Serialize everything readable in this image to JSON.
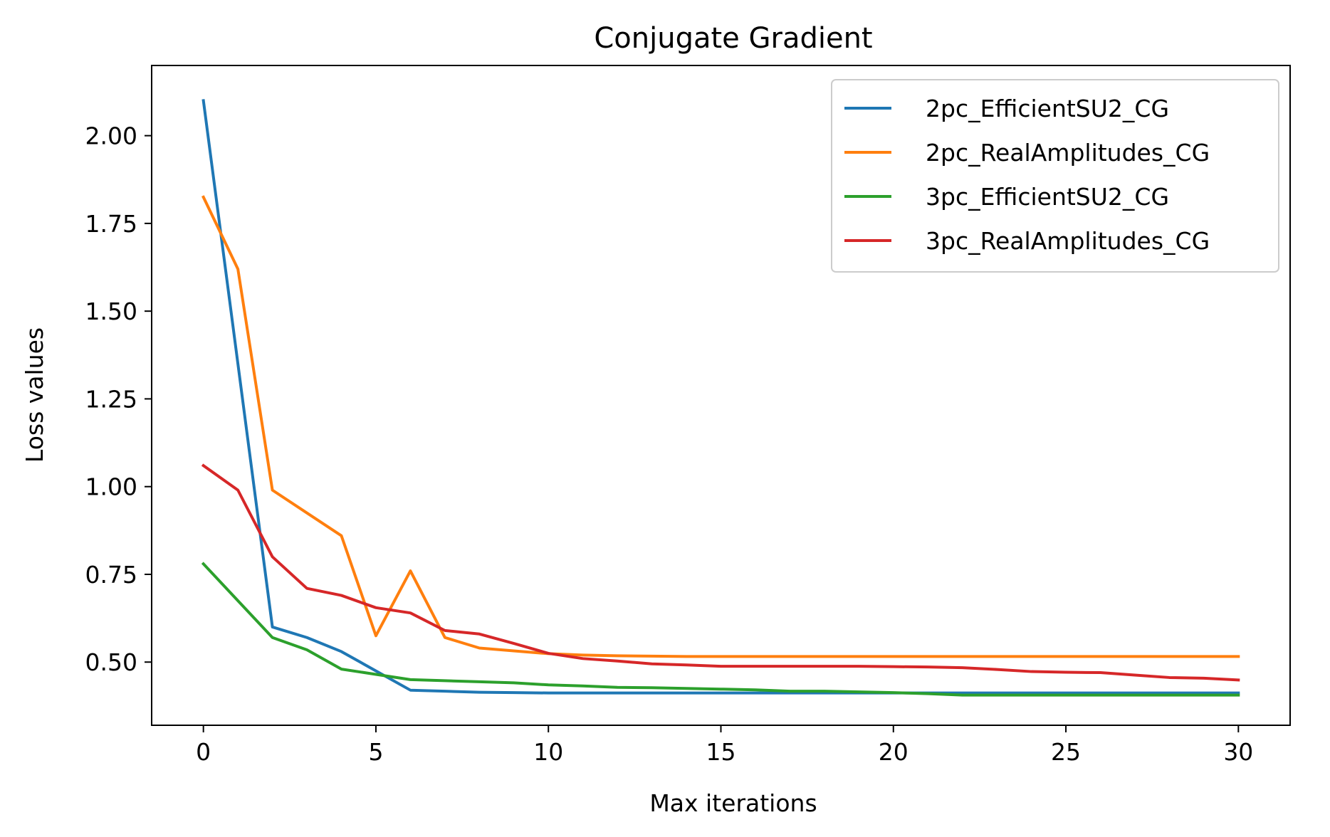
{
  "chart_data": {
    "type": "line",
    "title": "Conjugate Gradient",
    "xlabel": "Max iterations",
    "ylabel": "Loss values",
    "xlim": [
      -1.5,
      31.5
    ],
    "ylim": [
      0.32,
      2.2
    ],
    "xticks": [
      0,
      5,
      10,
      15,
      20,
      25,
      30
    ],
    "xtick_labels": [
      "0",
      "5",
      "10",
      "15",
      "20",
      "25",
      "30"
    ],
    "yticks": [
      0.5,
      0.75,
      1.0,
      1.25,
      1.5,
      1.75,
      2.0
    ],
    "ytick_labels": [
      "0.50",
      "0.75",
      "1.00",
      "1.25",
      "1.50",
      "1.75",
      "2.00"
    ],
    "grid": false,
    "legend_position": "top-right",
    "x": [
      0,
      1,
      2,
      3,
      4,
      5,
      6,
      7,
      8,
      9,
      10,
      11,
      12,
      13,
      14,
      15,
      16,
      17,
      18,
      19,
      20,
      21,
      22,
      23,
      24,
      25,
      26,
      27,
      28,
      29,
      30
    ],
    "series": [
      {
        "name": "2pc_EfficientSU2_CG",
        "color": "#1f77b4",
        "values": [
          2.1,
          1.35,
          0.6,
          0.57,
          0.53,
          0.475,
          0.42,
          0.417,
          0.414,
          0.413,
          0.412,
          0.412,
          0.412,
          0.412,
          0.412,
          0.412,
          0.412,
          0.412,
          0.412,
          0.412,
          0.412,
          0.412,
          0.412,
          0.412,
          0.412,
          0.412,
          0.412,
          0.412,
          0.412,
          0.412,
          0.412
        ]
      },
      {
        "name": "2pc_RealAmplitudes_CG",
        "color": "#ff7f0e",
        "values": [
          1.825,
          1.62,
          0.99,
          0.925,
          0.86,
          0.575,
          0.76,
          0.57,
          0.54,
          0.532,
          0.524,
          0.52,
          0.518,
          0.517,
          0.516,
          0.516,
          0.516,
          0.516,
          0.516,
          0.516,
          0.516,
          0.516,
          0.516,
          0.516,
          0.516,
          0.516,
          0.516,
          0.516,
          0.516,
          0.516,
          0.516
        ]
      },
      {
        "name": "3pc_EfficientSU2_CG",
        "color": "#2ca02c",
        "values": [
          0.78,
          0.675,
          0.57,
          0.535,
          0.48,
          0.465,
          0.45,
          0.447,
          0.444,
          0.441,
          0.435,
          0.432,
          0.428,
          0.427,
          0.425,
          0.423,
          0.421,
          0.417,
          0.417,
          0.415,
          0.413,
          0.41,
          0.406,
          0.406,
          0.406,
          0.406,
          0.406,
          0.406,
          0.406,
          0.406,
          0.406
        ]
      },
      {
        "name": "3pc_RealAmplitudes_CG",
        "color": "#d62728",
        "values": [
          1.06,
          0.99,
          0.8,
          0.71,
          0.69,
          0.655,
          0.64,
          0.59,
          0.58,
          0.553,
          0.525,
          0.51,
          0.503,
          0.495,
          0.492,
          0.488,
          0.488,
          0.488,
          0.488,
          0.488,
          0.487,
          0.486,
          0.484,
          0.479,
          0.473,
          0.471,
          0.47,
          0.463,
          0.456,
          0.454,
          0.449
        ]
      }
    ]
  }
}
